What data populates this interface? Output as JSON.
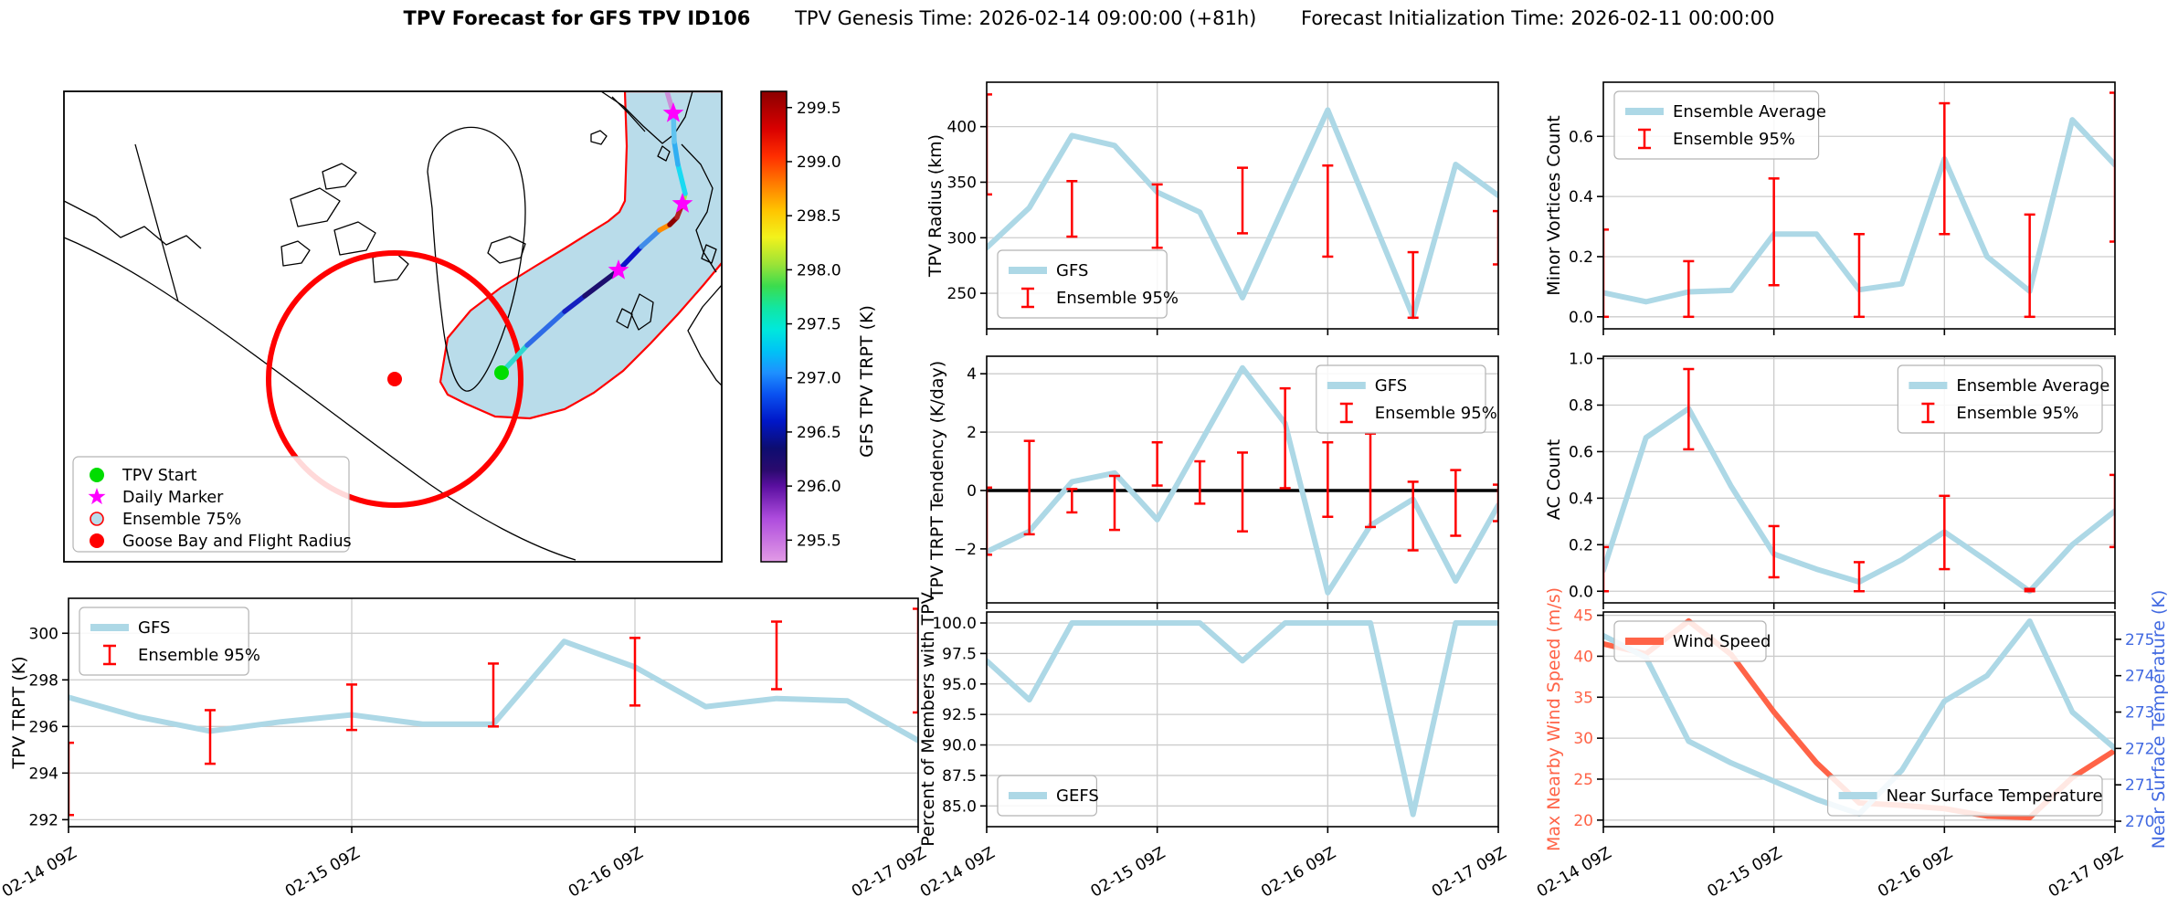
{
  "title": {
    "main": "TPV Forecast for GFS TPV ID106",
    "genesis": "TPV Genesis Time: 2026-02-14 09:00:00 (+81h)",
    "init": "Forecast Initialization Time: 2026-02-11 00:00:00"
  },
  "palette": {
    "gfs_line": "#ADD8E6",
    "error_bar": "#FF0000",
    "wind_line": "#FF6347",
    "temp_axis": "#4169E1",
    "grid": "#CCCCCC",
    "zero_line": "#000000",
    "region_fill": "#B9DCEA",
    "region_edge": "#FF0000",
    "tpv_start": "#00DD00",
    "daily_marker": "#FF00FF",
    "goose_bay": "#FF0000"
  },
  "x_axis": {
    "hours": [
      0,
      6,
      12,
      18,
      24,
      30,
      36,
      42,
      48,
      54,
      60,
      66,
      72
    ],
    "tick_hours": [
      0,
      24,
      48,
      72
    ],
    "tick_labels": [
      "02-14 09Z",
      "02-15 09Z",
      "02-16 09Z",
      "02-17 09Z"
    ]
  },
  "map": {
    "legend_items": [
      {
        "marker": "tpv-start-dot",
        "label": "TPV Start"
      },
      {
        "marker": "daily-marker-star",
        "label": "Daily Marker"
      },
      {
        "marker": "ensemble-75-circle",
        "label": "Ensemble 75%"
      },
      {
        "marker": "goose-bay-dot",
        "label": "Goose Bay and Flight Radius"
      }
    ],
    "colorbar": {
      "label": "GFS TPV TRPT (K)",
      "vmin": 295.3,
      "vmax": 299.65,
      "ticks": [
        295.5,
        296.0,
        296.5,
        297.0,
        297.5,
        298.0,
        298.5,
        299.0,
        299.5
      ],
      "tick_labels": [
        "295.5",
        "296.0",
        "296.5",
        "297.0",
        "297.5",
        "298.0",
        "298.5",
        "299.0",
        "299.5"
      ],
      "gradient": [
        {
          "v": 295.3,
          "c": "#E29BE6"
        },
        {
          "v": 295.7,
          "c": "#AE4CDD"
        },
        {
          "v": 296.0,
          "c": "#5A0FA0"
        },
        {
          "v": 296.15,
          "c": "#2A0A6E"
        },
        {
          "v": 296.35,
          "c": "#0D0D70"
        },
        {
          "v": 296.6,
          "c": "#0017C8"
        },
        {
          "v": 296.85,
          "c": "#0A52F0"
        },
        {
          "v": 297.05,
          "c": "#1E90FF"
        },
        {
          "v": 297.25,
          "c": "#00C3F5"
        },
        {
          "v": 297.45,
          "c": "#00E8DC"
        },
        {
          "v": 297.65,
          "c": "#12E6A2"
        },
        {
          "v": 297.85,
          "c": "#3BDC4E"
        },
        {
          "v": 298.05,
          "c": "#9BE337"
        },
        {
          "v": 298.3,
          "c": "#F2F21C"
        },
        {
          "v": 298.55,
          "c": "#FFC400"
        },
        {
          "v": 298.8,
          "c": "#FF7A00"
        },
        {
          "v": 299.05,
          "c": "#FF2E00"
        },
        {
          "v": 299.3,
          "c": "#D90000"
        },
        {
          "v": 299.65,
          "c": "#8B0000"
        }
      ]
    },
    "corridor": [
      [
        412,
        318
      ],
      [
        420,
        270
      ],
      [
        445,
        240
      ],
      [
        478,
        215
      ],
      [
        515,
        192
      ],
      [
        548,
        172
      ],
      [
        575,
        155
      ],
      [
        596,
        142
      ],
      [
        608,
        132
      ],
      [
        614,
        120
      ],
      [
        616,
        60
      ],
      [
        614,
        0
      ],
      [
        722,
        0
      ],
      [
        726,
        45
      ],
      [
        722,
        85
      ],
      [
        736,
        100
      ],
      [
        740,
        135
      ],
      [
        732,
        165
      ],
      [
        720,
        188
      ],
      [
        700,
        212
      ],
      [
        672,
        244
      ],
      [
        642,
        276
      ],
      [
        612,
        306
      ],
      [
        580,
        330
      ],
      [
        548,
        348
      ],
      [
        510,
        358
      ],
      [
        472,
        356
      ],
      [
        440,
        342
      ],
      [
        420,
        332
      ]
    ],
    "track_points": [
      [
        479,
        308
      ],
      [
        507,
        278
      ],
      [
        548,
        241
      ],
      [
        570,
        224
      ],
      [
        607,
        196
      ],
      [
        632,
        170
      ],
      [
        652,
        152
      ],
      [
        663,
        146
      ],
      [
        671,
        138
      ],
      [
        677,
        123
      ],
      [
        680,
        112
      ],
      [
        672,
        80
      ],
      [
        668,
        55
      ],
      [
        667,
        24
      ],
      [
        660,
        0
      ]
    ],
    "track_colors": [
      "#2FD8CE",
      "#2E6BE6",
      "#1520C0",
      "#1C0E6E",
      "#0D12C9",
      "#3F8BE9",
      "#FF8C00",
      "#8B0000",
      "#B22222",
      "#A4E83A",
      "#1ADAF2",
      "#31AEF2",
      "#5FC3F0",
      "#CB90D8"
    ],
    "markers": {
      "tpv_start": [
        479,
        308
      ],
      "daily_stars": [
        [
          607,
          196
        ],
        [
          677,
          123
        ],
        [
          667,
          24
        ]
      ],
      "goose_bay": [
        362,
        315
      ],
      "flight_radius": 138
    },
    "coastlines": [
      "M0,160 C60,185 120,225 180,268 C250,318 330,380 400,430 C450,465 510,498 560,513",
      "M78,58 L125,230",
      "M0,120 L35,138 62,160 88,148 112,168 134,158 150,172",
      "M248,118 l32,-12 22,14 -14,22 -32,6 z",
      "M296,152 l26,-9 19,12 -10,19 -29,5 z",
      "M338,182 l23,-7 16,14 -12,17 -25,3 z",
      "M283,88 l21,-9 16,10 -12,15 -21,3 z",
      "M238,170 l18,-6 13,10 -9,14 -20,3 z",
      "M398,88 C400,62 415,45 438,40 C462,36 486,52 497,78 C506,104 507,138 502,172 C497,210 488,248 474,282 C463,309 450,330 440,328 C428,325 420,295 415,258 C409,212 405,165 403,128 Z",
      "M468,166 l20,-7 17,8 -5,15 -23,6 -13,-11 z",
      "M630,222 l15,9 -3,21 -13,9 -8,-17 z",
      "M611,238 l11,6 -5,15 -12,-7 z",
      "M588,0 L612,16 634,38 655,57 668,47 680,28 688,0",
      "M600,6 L618,24 636,44",
      "M676,58 L697,80 710,106 704,132 692,152 700,176 714,198",
      "M720,212 L699,236 683,262 697,290 714,316 720,322",
      "M703,168 l11,5 -5,15 -11,-5 z",
      "M655,60 l8,6 -4,10 -9,-5 z",
      "M577,47 l10,-4 7,6 -6,9 -11,-3 z"
    ]
  },
  "chart_data": [
    {
      "id": "tpv_trpt",
      "type": "line",
      "ylabel": "TPV TRPT (K)",
      "ylabel_dx": -48,
      "ylim": [
        291.7,
        301.5
      ],
      "yticks": [
        292,
        294,
        296,
        298,
        300
      ],
      "ytick_labels": [
        "292",
        "294",
        "296",
        "298",
        "300"
      ],
      "series": [
        {
          "name": "GFS",
          "color": "#ADD8E6",
          "values": [
            297.25,
            296.4,
            295.8,
            296.2,
            296.5,
            296.1,
            296.1,
            299.65,
            298.55,
            296.85,
            297.2,
            297.1,
            295.4
          ]
        }
      ],
      "errorbars": [
        [
          0,
          292.2,
          295.3
        ],
        [
          12,
          294.4,
          296.7
        ],
        [
          24,
          295.85,
          297.8
        ],
        [
          36,
          296.0,
          298.7
        ],
        [
          48,
          296.9,
          299.8
        ],
        [
          60,
          297.6,
          300.5
        ],
        [
          72,
          296.6,
          301.05
        ]
      ],
      "legends": [
        {
          "loc": "upper-left",
          "items": [
            {
              "glyph": "line",
              "color": "#ADD8E6",
              "label": "GFS"
            },
            {
              "glyph": "errorbar",
              "color": "#FF0000",
              "label": "Ensemble 95%"
            }
          ]
        }
      ],
      "show_xlabels": true
    },
    {
      "id": "tpv_radius",
      "type": "line",
      "ylabel": "TPV Radius (km)",
      "ylabel_dx": -50,
      "ylim": [
        218,
        440
      ],
      "yticks": [
        250,
        300,
        350,
        400
      ],
      "ytick_labels": [
        "250",
        "300",
        "350",
        "400"
      ],
      "series": [
        {
          "name": "GFS",
          "color": "#ADD8E6",
          "values": [
            291,
            327,
            392,
            383,
            341,
            323,
            246,
            331,
            415,
            322,
            229,
            366,
            338
          ]
        }
      ],
      "errorbars": [
        [
          0,
          339,
          429
        ],
        [
          12,
          301,
          351
        ],
        [
          24,
          291,
          348
        ],
        [
          36,
          304,
          363
        ],
        [
          48,
          283,
          365
        ],
        [
          60,
          228,
          287
        ],
        [
          72,
          276,
          324
        ]
      ],
      "legends": [
        {
          "loc": "lower-left",
          "items": [
            {
              "glyph": "line",
              "color": "#ADD8E6",
              "label": "GFS"
            },
            {
              "glyph": "errorbar",
              "color": "#FF0000",
              "label": "Ensemble 95%"
            }
          ]
        }
      ],
      "show_xlabels": false
    },
    {
      "id": "tendency",
      "type": "line",
      "ylabel": "TPV TRPT Tendency (K/day)",
      "ylabel_dx": -48,
      "ylim": [
        -3.85,
        4.6
      ],
      "zero_line": true,
      "yticks": [
        -2,
        0,
        2,
        4
      ],
      "ytick_labels": [
        "−2",
        "0",
        "2",
        "4"
      ],
      "series": [
        {
          "name": "GFS",
          "color": "#ADD8E6",
          "values": [
            -2.1,
            -1.4,
            0.3,
            0.6,
            -1.0,
            1.6,
            4.2,
            2.3,
            -3.5,
            -1.2,
            -0.3,
            -3.1,
            -0.5
          ]
        }
      ],
      "errorbars": [
        [
          0,
          -2.2,
          0.1
        ],
        [
          6,
          -1.5,
          1.7
        ],
        [
          12,
          -0.75,
          0.05
        ],
        [
          18,
          -1.35,
          0.5
        ],
        [
          24,
          0.17,
          1.65
        ],
        [
          30,
          -0.45,
          1.0
        ],
        [
          36,
          -1.4,
          1.3
        ],
        [
          42,
          0.08,
          3.5
        ],
        [
          48,
          -0.9,
          1.65
        ],
        [
          54,
          -1.25,
          1.95
        ],
        [
          60,
          -2.05,
          0.3
        ],
        [
          66,
          -1.55,
          0.7
        ],
        [
          72,
          -1.05,
          0.2
        ]
      ],
      "legends": [
        {
          "loc": "upper-right",
          "items": [
            {
              "glyph": "line",
              "color": "#ADD8E6",
              "label": "GFS"
            },
            {
              "glyph": "errorbar",
              "color": "#FF0000",
              "label": "Ensemble 95%"
            }
          ]
        }
      ],
      "show_xlabels": false
    },
    {
      "id": "percent",
      "type": "line",
      "ylabel": "Percent of Members with TPV",
      "ylabel_dx": -58,
      "ylim": [
        83.3,
        100.9
      ],
      "yticks": [
        85.0,
        87.5,
        90.0,
        92.5,
        95.0,
        97.5,
        100.0
      ],
      "ytick_labels": [
        "85.0",
        "87.5",
        "90.0",
        "92.5",
        "95.0",
        "97.5",
        "100.0"
      ],
      "series": [
        {
          "name": "GEFS",
          "color": "#ADD8E6",
          "values": [
            96.9,
            93.7,
            100,
            100,
            100,
            100,
            96.9,
            100,
            100,
            100,
            84.3,
            100,
            100
          ]
        }
      ],
      "errorbars": [],
      "legends": [
        {
          "loc": "lower-left",
          "items": [
            {
              "glyph": "line",
              "color": "#ADD8E6",
              "label": "GEFS"
            }
          ]
        }
      ],
      "show_xlabels": true
    },
    {
      "id": "minor_vortices",
      "type": "line",
      "ylabel": "Minor Vortices Count",
      "ylabel_dx": -48,
      "ylim": [
        -0.04,
        0.78
      ],
      "yticks": [
        0.0,
        0.2,
        0.4,
        0.6
      ],
      "ytick_labels": [
        "0.0",
        "0.2",
        "0.4",
        "0.6"
      ],
      "series": [
        {
          "name": "Ensemble Average",
          "color": "#ADD8E6",
          "values": [
            0.08,
            0.05,
            0.083,
            0.088,
            0.275,
            0.275,
            0.09,
            0.11,
            0.525,
            0.2,
            0.085,
            0.655,
            0.505
          ]
        }
      ],
      "errorbars": [
        [
          0,
          0.0,
          0.29
        ],
        [
          12,
          0.0,
          0.185
        ],
        [
          24,
          0.105,
          0.46
        ],
        [
          36,
          0.0,
          0.275
        ],
        [
          48,
          0.275,
          0.71
        ],
        [
          60,
          0.0,
          0.34
        ],
        [
          72,
          0.25,
          0.745
        ]
      ],
      "legends": [
        {
          "loc": "upper-left",
          "items": [
            {
              "glyph": "line",
              "color": "#ADD8E6",
              "label": "Ensemble Average"
            },
            {
              "glyph": "errorbar",
              "color": "#FF0000",
              "label": "Ensemble 95%"
            }
          ]
        }
      ],
      "show_xlabels": false
    },
    {
      "id": "ac_count",
      "type": "line",
      "ylabel": "AC Count",
      "ylabel_dx": -48,
      "ylim": [
        -0.05,
        1.01
      ],
      "yticks": [
        0.0,
        0.2,
        0.4,
        0.6,
        0.8,
        1.0
      ],
      "ytick_labels": [
        "0.0",
        "0.2",
        "0.4",
        "0.6",
        "0.8",
        "1.0"
      ],
      "series": [
        {
          "name": "Ensemble Average",
          "color": "#ADD8E6",
          "values": [
            0.09,
            0.66,
            0.785,
            0.45,
            0.16,
            0.095,
            0.04,
            0.135,
            0.255,
            0.13,
            0.0,
            0.2,
            0.345
          ]
        }
      ],
      "errorbars": [
        [
          0,
          0.0,
          0.19
        ],
        [
          12,
          0.61,
          0.955
        ],
        [
          24,
          0.06,
          0.28
        ],
        [
          36,
          0.0,
          0.125
        ],
        [
          48,
          0.095,
          0.41
        ],
        [
          60,
          0.0,
          0.01
        ],
        [
          72,
          0.19,
          0.5
        ]
      ],
      "legends": [
        {
          "loc": "upper-right",
          "items": [
            {
              "glyph": "line",
              "color": "#ADD8E6",
              "label": "Ensemble Average"
            },
            {
              "glyph": "errorbar",
              "color": "#FF0000",
              "label": "Ensemble 95%"
            }
          ]
        }
      ],
      "show_xlabels": false
    },
    {
      "id": "wind_temp",
      "type": "line",
      "ylabel": "Max Nearby Wind Speed (m/s)",
      "ylabel_dx": -48,
      "ylabel_color": "#FF6347",
      "ytick_color": "#FF6347",
      "ylim": [
        19.2,
        45.4
      ],
      "yticks": [
        20,
        25,
        30,
        35,
        40,
        45
      ],
      "ytick_labels": [
        "20",
        "25",
        "30",
        "35",
        "40",
        "45"
      ],
      "right": {
        "ylabel": "Near Surface Temperature (K)",
        "color": "#4169E1",
        "ylim": [
          269.85,
          275.75
        ],
        "yticks": [
          270,
          271,
          272,
          273,
          274,
          275
        ],
        "ytick_labels": [
          "270",
          "271",
          "272",
          "273",
          "274",
          "275"
        ]
      },
      "series": [
        {
          "name": "Wind Speed",
          "color": "#FF6347",
          "axis": "left",
          "values": [
            41.5,
            40.3,
            44.3,
            40.2,
            33.2,
            27.0,
            22.1,
            21.8,
            21.4,
            20.5,
            20.3,
            25.2,
            28.5
          ]
        },
        {
          "name": "Near Surface Temperature",
          "color": "#ADD8E6",
          "axis": "right",
          "values": [
            275.1,
            274.5,
            272.2,
            271.6,
            271.1,
            270.6,
            270.2,
            271.4,
            273.3,
            274.0,
            275.5,
            273.0,
            272.0
          ]
        }
      ],
      "errorbars": [],
      "legends": [
        {
          "loc": "upper-left",
          "items": [
            {
              "glyph": "line",
              "color": "#FF6347",
              "label": "Wind Speed"
            }
          ]
        },
        {
          "loc": "lower-right",
          "items": [
            {
              "glyph": "line",
              "color": "#ADD8E6",
              "label": "Near Surface Temperature"
            }
          ]
        }
      ],
      "show_xlabels": true
    }
  ]
}
